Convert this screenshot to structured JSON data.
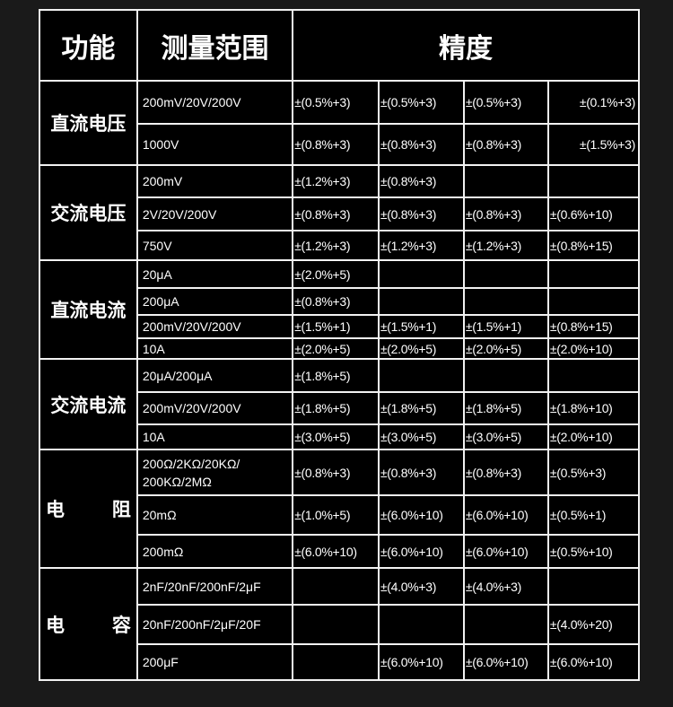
{
  "header": {
    "function": "功能",
    "range": "测量范围",
    "accuracy": "精度"
  },
  "groups": [
    {
      "function": "直流电压",
      "rows": [
        {
          "range": "200mV/20V/200V",
          "acc": [
            "±(0.5%+3)",
            "±(0.5%+3)",
            "±(0.5%+3)",
            "±(0.1%+3)"
          ]
        },
        {
          "range": "1000V",
          "acc": [
            "±(0.8%+3)",
            "±(0.8%+3)",
            "±(0.8%+3)",
            "±(1.5%+3)"
          ]
        }
      ]
    },
    {
      "function": "交流电压",
      "rows": [
        {
          "range": "200mV",
          "acc": [
            "±(1.2%+3)",
            "±(0.8%+3)",
            "",
            ""
          ]
        },
        {
          "range": "2V/20V/200V",
          "acc": [
            "±(0.8%+3)",
            "±(0.8%+3)",
            "±(0.8%+3)",
            "±(0.6%+10)"
          ]
        },
        {
          "range": "750V",
          "acc": [
            "±(1.2%+3)",
            "±(1.2%+3)",
            "±(1.2%+3)",
            "±(0.8%+15)"
          ]
        }
      ]
    },
    {
      "function": "直流电流",
      "rows": [
        {
          "range": "20μA",
          "acc": [
            "±(2.0%+5)",
            "",
            "",
            ""
          ]
        },
        {
          "range": "200μA",
          "acc": [
            "±(0.8%+3)",
            "",
            "",
            ""
          ]
        },
        {
          "range": "200mV/20V/200V",
          "acc": [
            "±(1.5%+1)",
            "±(1.5%+1)",
            "±(1.5%+1)",
            "±(0.8%+15)"
          ]
        },
        {
          "range": "10A",
          "acc": [
            "±(2.0%+5)",
            "±(2.0%+5)",
            "±(2.0%+5)",
            "±(2.0%+10)"
          ]
        }
      ]
    },
    {
      "function": "交流电流",
      "rows": [
        {
          "range": "20μA/200μA",
          "acc": [
            "±(1.8%+5)",
            "",
            "",
            ""
          ]
        },
        {
          "range": "200mV/20V/200V",
          "acc": [
            "±(1.8%+5)",
            "±(1.8%+5)",
            "±(1.8%+5)",
            "±(1.8%+10)"
          ]
        },
        {
          "range": "10A",
          "acc": [
            "±(3.0%+5)",
            "±(3.0%+5)",
            "±(3.0%+5)",
            "±(2.0%+10)"
          ]
        }
      ]
    },
    {
      "function": "电阻",
      "rows": [
        {
          "range": "200Ω/2KΩ/20KΩ/ 200KΩ/2MΩ",
          "acc": [
            "±(0.8%+3)",
            "±(0.8%+3)",
            "±(0.8%+3)",
            "±(0.5%+3)"
          ]
        },
        {
          "range": "20mΩ",
          "acc": [
            "±(1.0%+5)",
            "±(6.0%+10)",
            "±(6.0%+10)",
            "±(0.5%+1)"
          ]
        },
        {
          "range": "200mΩ",
          "acc": [
            "±(6.0%+10)",
            "±(6.0%+10)",
            "±(6.0%+10)",
            "±(0.5%+10)"
          ]
        }
      ]
    },
    {
      "function": "电容",
      "rows": [
        {
          "range": "2nF/20nF/200nF/2μF",
          "acc": [
            "",
            "±(4.0%+3)",
            "±(4.0%+3)",
            ""
          ]
        },
        {
          "range": "20nF/200nF/2μF/20F",
          "acc": [
            "",
            "",
            "",
            "±(4.0%+20)"
          ]
        },
        {
          "range": "200μF",
          "acc": [
            "",
            "±(6.0%+10)",
            "±(6.0%+10)",
            "±(6.0%+10)"
          ]
        }
      ]
    }
  ]
}
